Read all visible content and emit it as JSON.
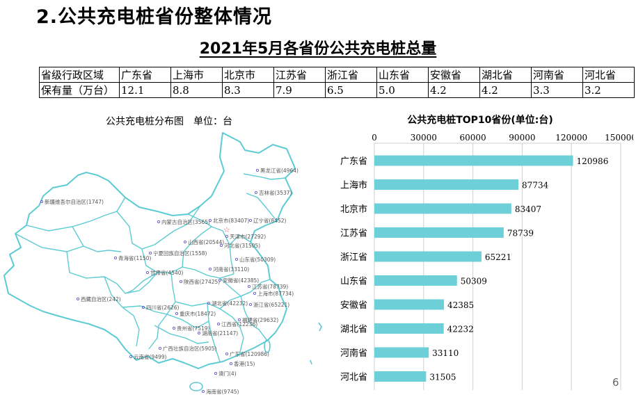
{
  "slide": {
    "heading": "2.公共充电桩省份整体情况",
    "subtitle": "2021年5月各省份公共充电桩总量",
    "page_number": "6"
  },
  "table": {
    "row1_header": "省级行政区域",
    "row2_header": "保有量（万台）",
    "provinces": [
      "广东省",
      "上海市",
      "北京市",
      "江苏省",
      "浙江省",
      "山东省",
      "安徽省",
      "湖北省",
      "河南省",
      "河北省"
    ],
    "values": [
      "12.1",
      "8.8",
      "8.3",
      "7.9",
      "6.5",
      "5.0",
      "4.2",
      "4.2",
      "3.3",
      "3.2"
    ]
  },
  "map": {
    "title": "公共充电桩分布图　单位：台",
    "outline_color": "#5ccbd3",
    "labels": [
      "黑龙江省(4964)",
      "吉林省(3537)",
      "新疆维吾尔自治区(1747)",
      "内蒙古自治区(3565)",
      "北京市(83407)",
      "辽宁省(8452)",
      "天津市(27292)",
      "山西省(20544)",
      "河北省(31505)",
      "宁夏回族自治区(1558)",
      "青海省(1150)",
      "山东省(50309)",
      "甘肃省(4540)",
      "河南省(33110)",
      "陕西省(27425)",
      "安徽省(42385)",
      "江苏省(78739)",
      "上海市(87734)",
      "西藏自治区(242)",
      "四川省(2626)",
      "湖北省(42232)",
      "浙江省(65221)",
      "重庆市(18472)",
      "福建省(29632)",
      "贵州省(7519)",
      "江西省(12236)",
      "湖南省(21147)",
      "广西壮族自治区(5905)",
      "广东省(120986)",
      "云南省(9499)",
      "香港(15)",
      "澳门(4)",
      "海南省(9745)"
    ]
  },
  "chart_data": {
    "type": "bar",
    "orientation": "horizontal",
    "title": "公共充电桩TOP10省份(单位:台)",
    "categories": [
      "广东省",
      "上海市",
      "北京市",
      "江苏省",
      "浙江省",
      "山东省",
      "安徽省",
      "湖北省",
      "河南省",
      "河北省"
    ],
    "values": [
      120986,
      87734,
      83407,
      78739,
      65221,
      50309,
      42385,
      42232,
      33110,
      31505
    ],
    "value_labels": [
      "120986",
      "87734",
      "83407",
      "78739",
      "65221",
      "50309",
      "42385",
      "42232",
      "33110",
      "31505"
    ],
    "xlim": [
      0,
      150000
    ],
    "ticks": [
      0,
      30000,
      60000,
      90000,
      120000,
      150000
    ],
    "tick_labels": [
      "0",
      "30000",
      "60000",
      "90000",
      "120000",
      "150000"
    ],
    "axis_position": "top",
    "grid": true,
    "bar_color": "#6dd0d8"
  }
}
